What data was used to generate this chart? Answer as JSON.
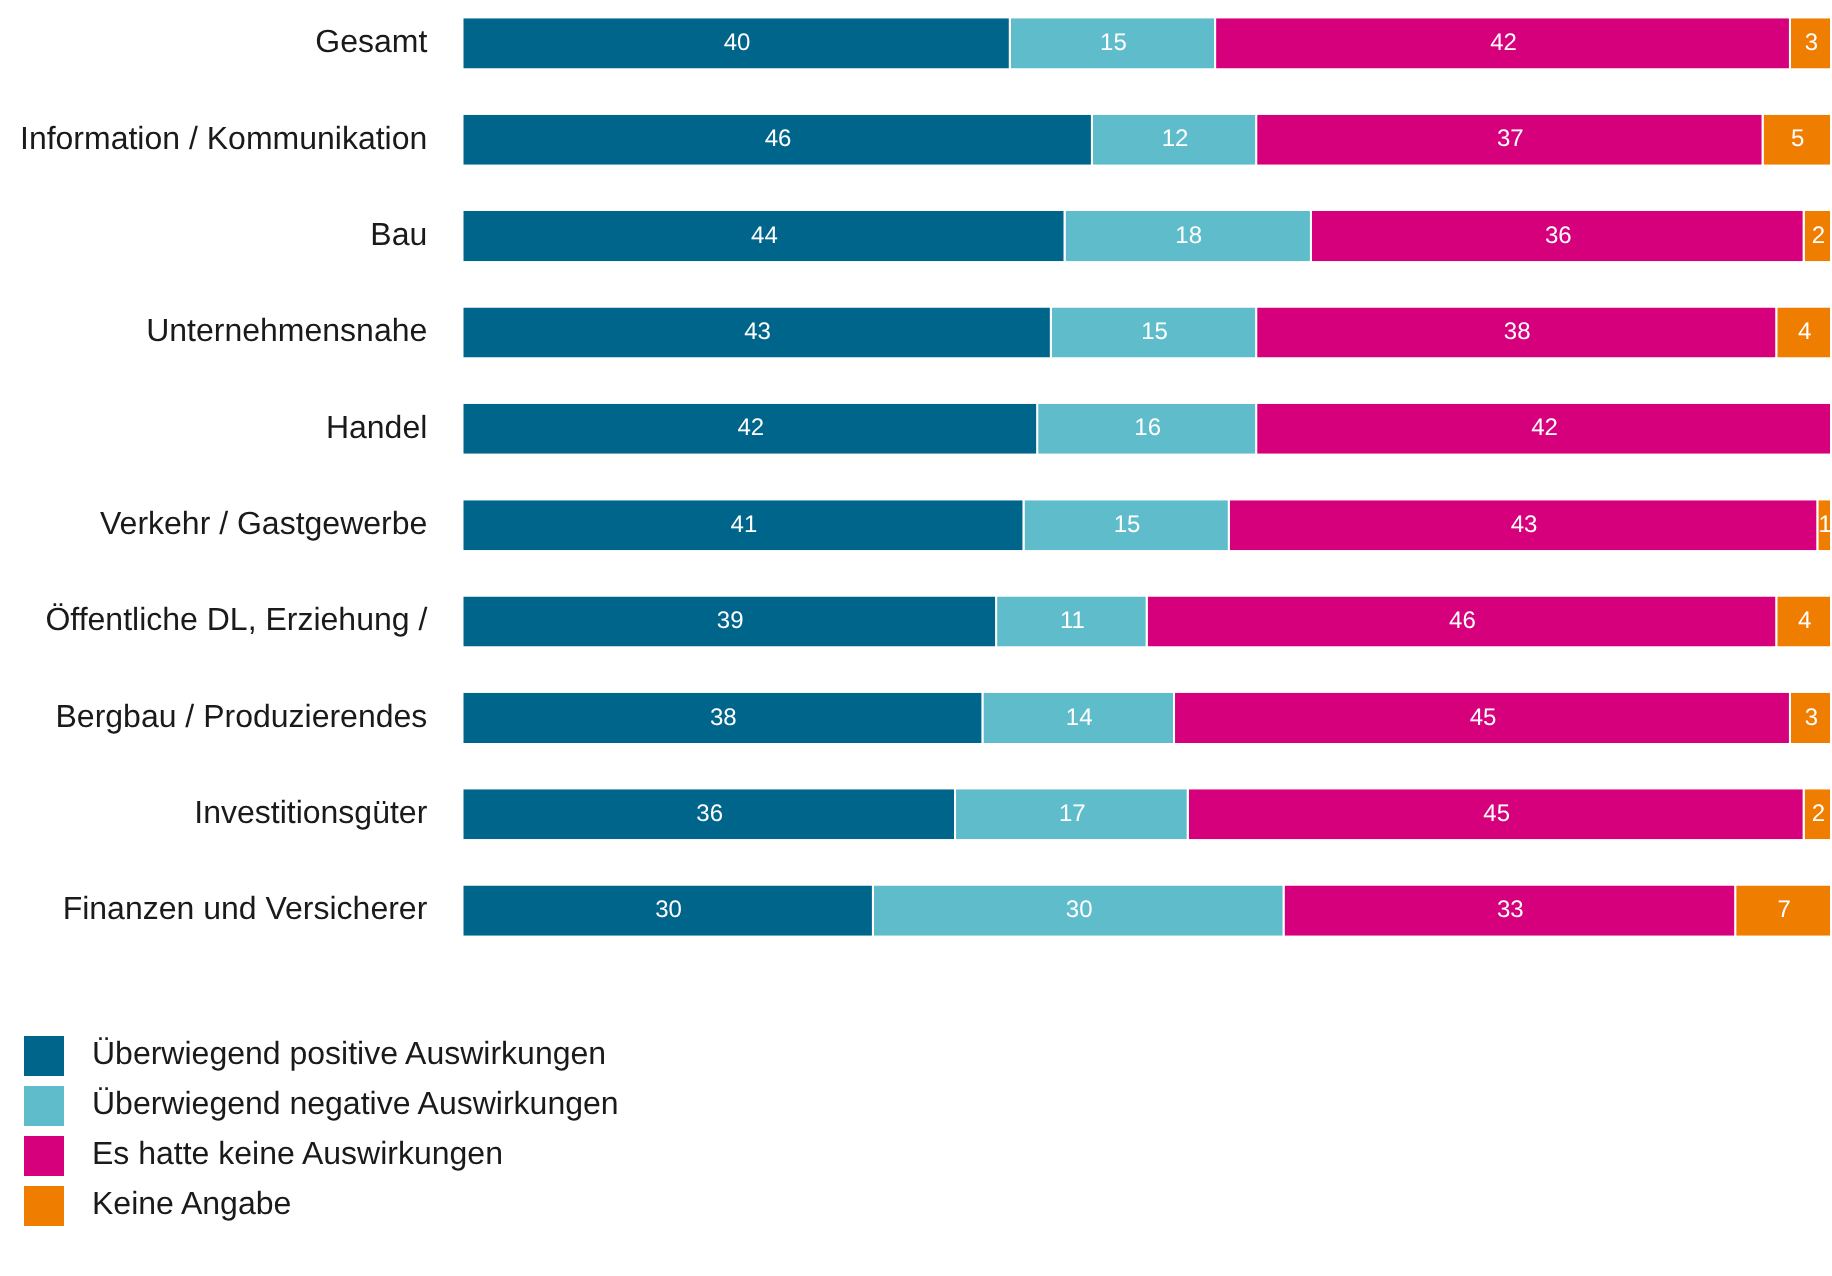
{
  "chart_data": {
    "type": "bar",
    "orientation": "horizontal",
    "stacked": true,
    "data_labels": true,
    "legend": "bottom left",
    "xlim": [
      0,
      100
    ],
    "tick_labels": "y",
    "categories": [
      "Gesamt",
      "Information / Kommunikation",
      "Bau",
      "Unternehmensnahe",
      "Handel",
      "Verkehr / Gastgewerbe",
      "Öffentliche DL, Erziehung /",
      "Bergbau / Produzierendes",
      "Investitionsgüter",
      "Finanzen und Versicherer"
    ],
    "series": [
      {
        "name": "Überwiegend positive Auswirkungen",
        "color": "#00658b",
        "values": [
          40,
          46,
          44,
          43,
          42,
          41,
          39,
          38,
          36,
          30
        ]
      },
      {
        "name": "Überwiegend negative Auswirkungen",
        "color": "#5fbccb",
        "values": [
          15,
          12,
          18,
          15,
          16,
          15,
          11,
          14,
          17,
          30
        ]
      },
      {
        "name": "Es hatte keine Auswirkungen",
        "color": "#d6007c",
        "values": [
          42,
          37,
          36,
          38,
          42,
          43,
          46,
          45,
          45,
          33
        ]
      },
      {
        "name": "Keine Angabe",
        "color": "#ef7d00",
        "values": [
          3,
          5,
          2,
          4,
          null,
          1,
          4,
          3,
          2,
          7
        ]
      }
    ]
  }
}
